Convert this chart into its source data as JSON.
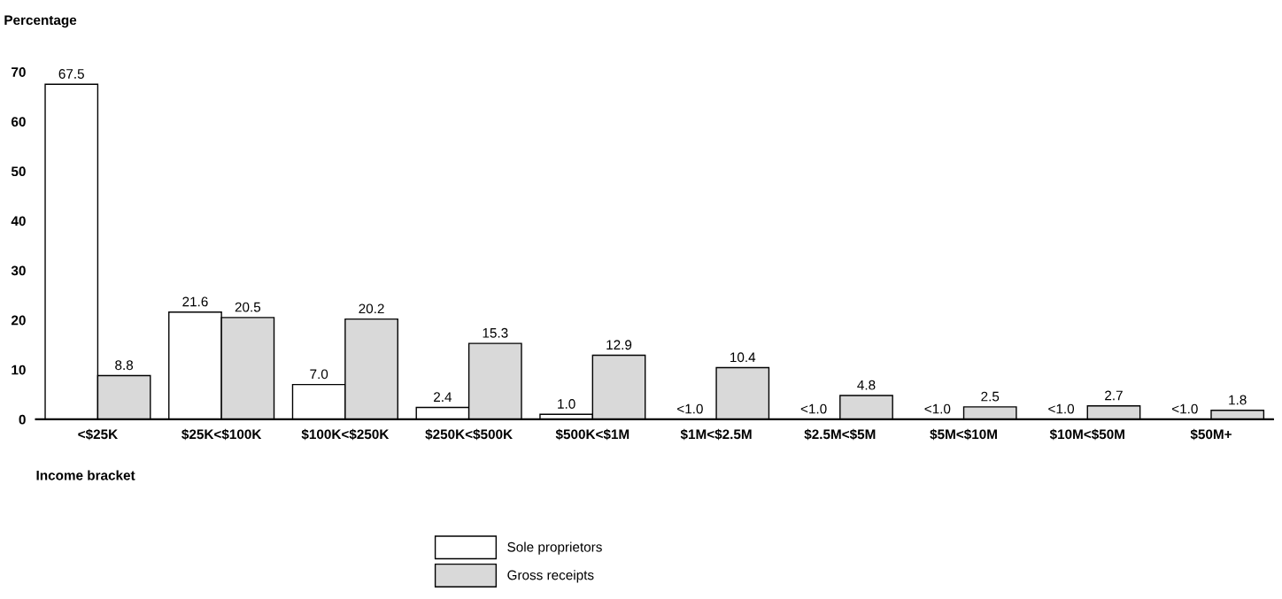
{
  "chart_data": {
    "type": "bar",
    "xlabel": "Income bracket",
    "ylabel": "Percentage",
    "categories": [
      "<$25K",
      "$25K<$100K",
      "$100K<$250K",
      "$250K<$500K",
      "$500K<$1M",
      "$1M<$2.5M",
      "$2.5M<$5M",
      "$5M<$10M",
      "$10M<$50M",
      "$50M+"
    ],
    "series": [
      {
        "name": "Sole proprietors",
        "color": "#ffffff",
        "values": [
          67.5,
          21.6,
          7.0,
          2.4,
          1.0,
          null,
          null,
          null,
          null,
          null
        ],
        "value_labels": [
          "67.5",
          "21.6",
          "7.0",
          "2.4",
          "1.0",
          "<1.0",
          "<1.0",
          "<1.0",
          "<1.0",
          "<1.0"
        ]
      },
      {
        "name": "Gross receipts",
        "color": "#d9d9d9",
        "values": [
          8.8,
          20.5,
          20.2,
          15.3,
          12.9,
          10.4,
          4.8,
          2.5,
          2.7,
          1.8
        ],
        "value_labels": [
          "8.8",
          "20.5",
          "20.2",
          "15.3",
          "12.9",
          "10.4",
          "4.8",
          "2.5",
          "2.7",
          "1.8"
        ]
      }
    ],
    "ylim": [
      0,
      70
    ],
    "yticks": [
      0,
      10,
      20,
      30,
      40,
      50,
      60,
      70
    ],
    "grid": false,
    "legend": "bottom"
  }
}
